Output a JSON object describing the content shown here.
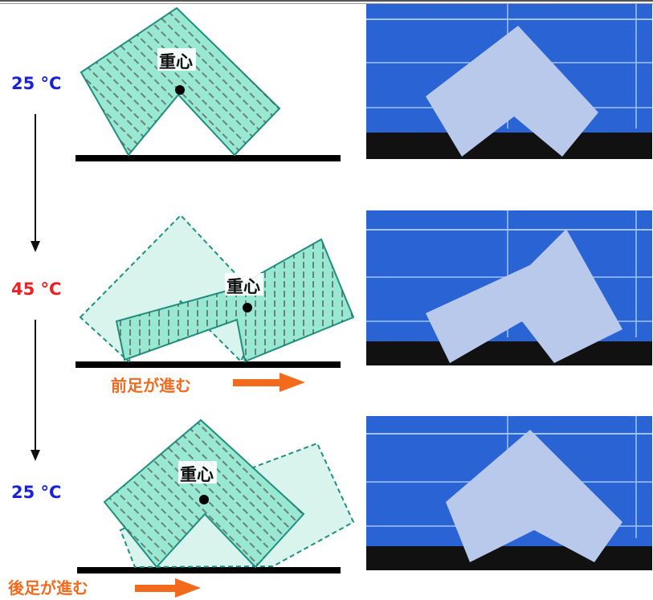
{
  "stages": [
    {
      "temperature": "25 °C",
      "center_label": "重心"
    },
    {
      "temperature": "45 °C",
      "center_label": "重心",
      "caption": "前足が進む"
    },
    {
      "temperature": "25 °C",
      "center_label": "重心",
      "caption": "後足が進む"
    }
  ],
  "colors": {
    "cold": "#1a22d6",
    "hot": "#ee2020",
    "arrow": "#f26a1b",
    "gel_fill": "#99e8d2",
    "gel_stroke": "#1f8f7f",
    "photo_bg": "#2a64d4"
  }
}
